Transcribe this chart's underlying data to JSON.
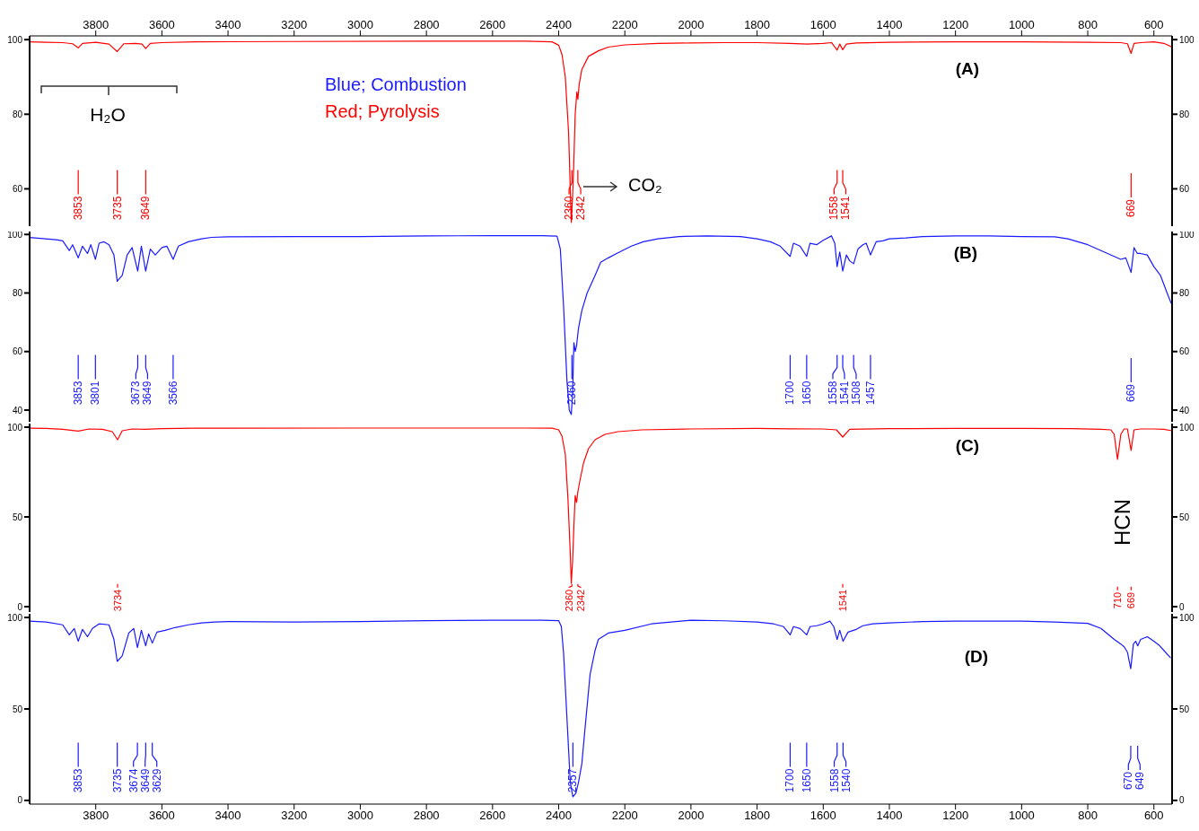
{
  "chart_data": [
    {
      "type": "line",
      "marker": "none",
      "xlim": [
        4000,
        545
      ],
      "xticks": [
        3800,
        3600,
        3400,
        3200,
        3000,
        2800,
        2600,
        2400,
        2200,
        2000,
        1800,
        1600,
        1400,
        1200,
        1000,
        800,
        600
      ],
      "ylim": [
        50,
        101
      ],
      "yticks": [
        100,
        80,
        60
      ],
      "y2lim": [
        50,
        101
      ],
      "y2ticks": [
        100,
        80,
        60
      ],
      "series": [
        {
          "color": "#ff0000",
          "x": [
            4000,
            3950,
            3900,
            3870,
            3853,
            3840,
            3800,
            3760,
            3735,
            3715,
            3680,
            3660,
            3649,
            3635,
            3600,
            3500,
            3200,
            2800,
            2500,
            2420,
            2400,
            2390,
            2380,
            2370,
            2365,
            2362,
            2360,
            2358,
            2355,
            2350,
            2345,
            2342,
            2338,
            2330,
            2310,
            2280,
            2250,
            2200,
            2100,
            2000,
            1900,
            1800,
            1700,
            1650,
            1600,
            1575,
            1558,
            1550,
            1541,
            1530,
            1500,
            1400,
            1200,
            1000,
            800,
            700,
            680,
            669,
            660,
            640,
            600,
            570,
            545
          ],
          "values": [
            99.4,
            99.3,
            99.2,
            98.9,
            97.8,
            99.0,
            99.3,
            98.8,
            96.8,
            98.9,
            99.0,
            98.8,
            97.6,
            99.0,
            99.2,
            99.4,
            99.5,
            99.6,
            99.6,
            99.4,
            98.5,
            96,
            90,
            75,
            60,
            51,
            54.5,
            58,
            65,
            80,
            86,
            84,
            88,
            92,
            95.5,
            97,
            98,
            98.6,
            99,
            99.1,
            99.2,
            99.2,
            99,
            98.8,
            99,
            99.2,
            97.2,
            98.8,
            97.3,
            98.8,
            99.1,
            99.3,
            99.4,
            99.4,
            99.3,
            99.2,
            98.9,
            96.3,
            99,
            99.2,
            99.4,
            99,
            98
          ]
        }
      ],
      "annotations": [
        "H₂O",
        "Blue; Combustion",
        "Red; Pyrolysis",
        "CO₂",
        "(A)",
        {
          "text": "3853",
          "x": 3853
        },
        {
          "text": "3735",
          "x": 3735
        },
        {
          "text": "3649",
          "x": 3649
        },
        {
          "text": "2360",
          "x": 2360
        },
        {
          "text": "2342",
          "x": 2342
        },
        {
          "text": "1558",
          "x": 1558
        },
        {
          "text": "1541",
          "x": 1541
        },
        {
          "text": "669",
          "x": 669
        }
      ]
    },
    {
      "type": "line",
      "marker": "none",
      "tick_labels": "y",
      "xlim": [
        4000,
        545
      ],
      "ylim": [
        36,
        101
      ],
      "yticks": [
        100,
        80,
        60,
        40
      ],
      "y2lim": [
        36,
        101
      ],
      "y2ticks": [
        100,
        80,
        60,
        40
      ],
      "series": [
        {
          "color": "#1a1aff",
          "x": [
            4000,
            3960,
            3920,
            3900,
            3880,
            3870,
            3853,
            3840,
            3825,
            3815,
            3801,
            3790,
            3775,
            3760,
            3745,
            3735,
            3720,
            3705,
            3690,
            3673,
            3662,
            3649,
            3635,
            3620,
            3600,
            3585,
            3566,
            3550,
            3520,
            3480,
            3450,
            3400,
            3200,
            3000,
            2800,
            2600,
            2450,
            2405,
            2395,
            2385,
            2375,
            2368,
            2362,
            2360,
            2358,
            2354,
            2350,
            2346,
            2340,
            2330,
            2314,
            2290,
            2273,
            2250,
            2225,
            2180,
            2144,
            2100,
            2036,
            1950,
            1850,
            1800,
            1760,
            1730,
            1700,
            1690,
            1670,
            1650,
            1640,
            1620,
            1600,
            1575,
            1565,
            1558,
            1550,
            1541,
            1530,
            1520,
            1508,
            1495,
            1480,
            1470,
            1457,
            1440,
            1420,
            1400,
            1350,
            1300,
            1200,
            1100,
            1000,
            900,
            860,
            800,
            760,
            720,
            700,
            685,
            669,
            660,
            650,
            640,
            620,
            600,
            580,
            560,
            548
          ],
          "values": [
            99,
            98.6,
            98.2,
            97.8,
            94.5,
            96.5,
            92,
            96,
            93.5,
            96.5,
            91.5,
            97,
            97.5,
            96.5,
            93,
            84,
            86,
            93,
            95.5,
            87.5,
            96,
            87.5,
            95,
            93,
            95.5,
            96,
            91.5,
            96,
            97.5,
            98.5,
            99,
            99.2,
            99.3,
            99.3,
            99.5,
            99.6,
            99.6,
            99.4,
            95,
            75,
            50,
            40,
            38.5,
            42,
            45,
            63,
            60,
            62,
            68,
            74,
            80,
            86,
            90.5,
            92,
            93.5,
            96,
            97.5,
            98.5,
            99.3,
            99.5,
            99.3,
            98.5,
            97.5,
            96,
            92.5,
            97,
            96,
            92.5,
            97,
            96.5,
            98,
            99.5,
            97,
            89,
            94,
            87.5,
            93,
            91,
            90,
            95,
            96.5,
            97,
            93,
            97.5,
            97.8,
            98.5,
            98.8,
            99.3,
            99.5,
            99.5,
            99.3,
            99.2,
            98.5,
            96.5,
            94.5,
            92.5,
            91.5,
            92,
            87,
            95.5,
            93.5,
            93.5,
            93,
            89,
            86,
            80,
            76.5
          ]
        }
      ],
      "annotations": [
        "(B)",
        {
          "text": "3853",
          "x": 3853
        },
        {
          "text": "3801",
          "x": 3801
        },
        {
          "text": "3673",
          "x": 3673
        },
        {
          "text": "3649",
          "x": 3649
        },
        {
          "text": "3566",
          "x": 3566
        },
        {
          "text": "2360",
          "x": 2360
        },
        {
          "text": "1700",
          "x": 1700
        },
        {
          "text": "1650",
          "x": 1650
        },
        {
          "text": "1558",
          "x": 1558
        },
        {
          "text": "1541",
          "x": 1541
        },
        {
          "text": "1508",
          "x": 1508
        },
        {
          "text": "1457",
          "x": 1457
        },
        {
          "text": "669",
          "x": 669
        }
      ]
    },
    {
      "type": "line",
      "marker": "none",
      "tick_labels": "y",
      "xlim": [
        4000,
        545
      ],
      "ylim": [
        -3,
        102
      ],
      "yticks": [
        100,
        50,
        0
      ],
      "y2lim": [
        -3,
        102
      ],
      "y2ticks": [
        100,
        50,
        0
      ],
      "series": [
        {
          "color": "#ff0000",
          "x": [
            4000,
            3950,
            3900,
            3853,
            3820,
            3780,
            3750,
            3734,
            3720,
            3690,
            3650,
            3600,
            3500,
            3000,
            2500,
            2420,
            2400,
            2390,
            2380,
            2372,
            2365,
            2362,
            2360,
            2358,
            2354,
            2350,
            2346,
            2342,
            2336,
            2325,
            2310,
            2290,
            2260,
            2220,
            2150,
            2000,
            1800,
            1700,
            1600,
            1560,
            1541,
            1520,
            1400,
            1200,
            1000,
            850,
            760,
            730,
            720,
            710,
            700,
            690,
            680,
            669,
            660,
            640,
            600,
            570,
            545
          ],
          "values": [
            99.4,
            99.3,
            98.8,
            97.8,
            99,
            98.8,
            97.5,
            93,
            98,
            99,
            98.8,
            99.2,
            99.4,
            99.5,
            99.5,
            99.4,
            98.5,
            95,
            85,
            60,
            30,
            13,
            19,
            25,
            45,
            62,
            58,
            64,
            70,
            80,
            88,
            93,
            96,
            97.5,
            98.5,
            99,
            99.3,
            99.1,
            99,
            98.5,
            94.5,
            98.8,
            99.2,
            99.3,
            99.3,
            99.2,
            98.8,
            98.5,
            96,
            82,
            96,
            99,
            99,
            87,
            98.5,
            99,
            99,
            98.8,
            98
          ]
        }
      ],
      "annotations": [
        "(C)",
        "HCN",
        {
          "text": "3734",
          "x": 3734
        },
        {
          "text": "2360",
          "x": 2360
        },
        {
          "text": "2342",
          "x": 2342
        },
        {
          "text": "1541",
          "x": 1541
        },
        {
          "text": "710",
          "x": 710
        },
        {
          "text": "669",
          "x": 669
        }
      ]
    },
    {
      "type": "line",
      "marker": "none",
      "xlim": [
        4000,
        545
      ],
      "xticks": [
        3800,
        3600,
        3400,
        3200,
        3000,
        2800,
        2600,
        2400,
        2200,
        2000,
        1800,
        1600,
        1400,
        1200,
        1000,
        800,
        600
      ],
      "ylim": [
        -2,
        102
      ],
      "yticks": [
        100,
        50,
        0
      ],
      "y2lim": [
        -2,
        102
      ],
      "y2ticks": [
        100,
        50,
        0
      ],
      "series": [
        {
          "color": "#1a1aff",
          "x": [
            4000,
            3950,
            3900,
            3880,
            3865,
            3853,
            3840,
            3825,
            3810,
            3790,
            3760,
            3745,
            3735,
            3720,
            3700,
            3685,
            3674,
            3662,
            3649,
            3640,
            3629,
            3615,
            3590,
            3560,
            3520,
            3480,
            3440,
            3400,
            3200,
            3000,
            2800,
            2600,
            2450,
            2400,
            2392,
            2385,
            2375,
            2365,
            2357,
            2348,
            2340,
            2330,
            2320,
            2305,
            2290,
            2280,
            2250,
            2200,
            2120,
            2000,
            1900,
            1800,
            1750,
            1720,
            1700,
            1690,
            1670,
            1650,
            1640,
            1620,
            1600,
            1580,
            1568,
            1558,
            1550,
            1540,
            1525,
            1500,
            1480,
            1450,
            1400,
            1300,
            1200,
            1000,
            900,
            800,
            760,
            720,
            700,
            690,
            680,
            670,
            662,
            655,
            649,
            640,
            620,
            600,
            585,
            570,
            550
          ],
          "values": [
            98,
            97.5,
            96,
            90.5,
            94,
            87,
            93.5,
            89.5,
            94,
            96.5,
            96,
            88,
            76,
            79,
            91.5,
            94,
            83.5,
            93,
            84.5,
            91,
            86,
            92,
            93,
            94.5,
            96,
            97,
            97.5,
            97.8,
            97.5,
            97.8,
            98.3,
            98.5,
            98.5,
            98.3,
            95,
            80,
            45,
            10,
            2,
            4,
            10,
            20,
            40,
            69,
            82,
            88,
            91.5,
            93,
            96.5,
            98.5,
            98.2,
            97.5,
            96.5,
            95,
            90.5,
            95,
            94,
            90.5,
            95,
            95.5,
            96.5,
            98,
            95,
            88,
            93,
            87,
            92,
            93.5,
            95.5,
            96.5,
            97,
            97.8,
            98,
            98,
            97.5,
            96.8,
            94,
            88,
            85.5,
            84,
            81,
            72,
            85.5,
            87,
            84.5,
            88,
            89.5,
            87,
            85,
            82,
            78
          ]
        }
      ],
      "annotations": [
        "(D)",
        {
          "text": "3853",
          "x": 3853
        },
        {
          "text": "3735",
          "x": 3735
        },
        {
          "text": "3674",
          "x": 3674
        },
        {
          "text": "3649",
          "x": 3649
        },
        {
          "text": "3629",
          "x": 3629
        },
        {
          "text": "2357",
          "x": 2357
        },
        {
          "text": "1700",
          "x": 1700
        },
        {
          "text": "1650",
          "x": 1650
        },
        {
          "text": "1558",
          "x": 1558
        },
        {
          "text": "1540",
          "x": 1540
        },
        {
          "text": "670",
          "x": 670
        },
        {
          "text": "649",
          "x": 649
        }
      ]
    }
  ]
}
